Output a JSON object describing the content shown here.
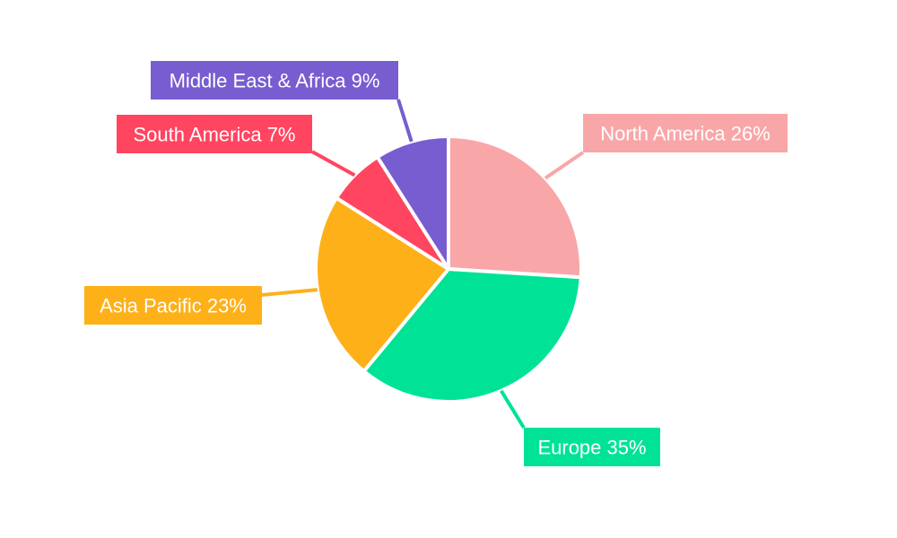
{
  "chart_data": {
    "type": "pie",
    "title": "",
    "start_angle_deg": 0,
    "direction": "clockwise",
    "slices": [
      {
        "label": "North America",
        "value": 26,
        "label_text": "North America 26%",
        "color": "#f9a6a8"
      },
      {
        "label": "Europe",
        "value": 35,
        "label_text": "Europe 35%",
        "color": "#00e396"
      },
      {
        "label": "Asia Pacific",
        "value": 23,
        "label_text": "Asia Pacific 23%",
        "color": "#feb019"
      },
      {
        "label": "South America",
        "value": 7,
        "label_text": "South America 7%",
        "color": "#ff4560"
      },
      {
        "label": "Middle East & Africa",
        "value": 9,
        "label_text": "Middle East & Africa 9%",
        "color": "#775dd0"
      }
    ]
  }
}
